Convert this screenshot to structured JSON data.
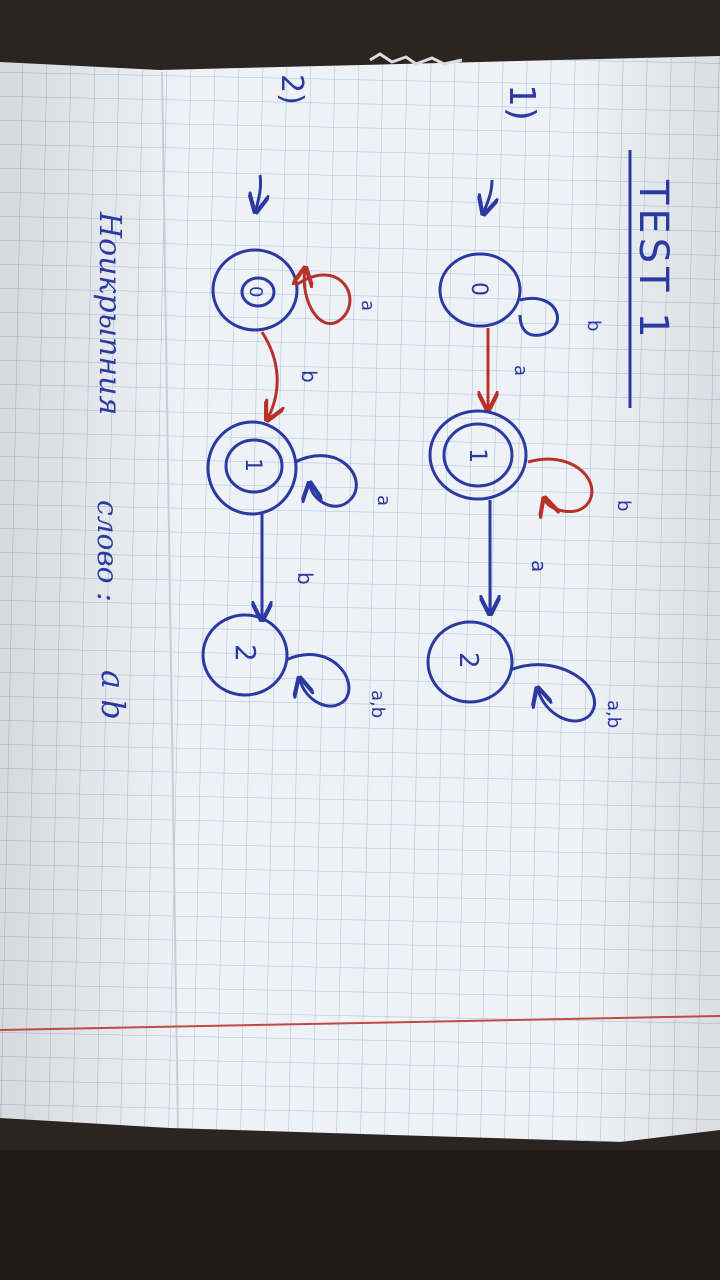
{
  "photo": {
    "title": "TEST 1",
    "section_1_marker": "1)",
    "section_2_marker": "2)",
    "caption_word_1": "Ноикрыпния",
    "caption_word_2": "слово :",
    "caption_word_3": "a b"
  },
  "automaton_1": {
    "states": [
      {
        "id": "s1-q0",
        "label": "0",
        "accepting": false
      },
      {
        "id": "s1-q1",
        "label": "1",
        "accepting": true
      },
      {
        "id": "s1-q2",
        "label": "2",
        "accepting": false
      }
    ],
    "edge_labels": {
      "q0_q1": "a",
      "q0_loop": "b",
      "q1_loop": "b",
      "q1_q2": "a",
      "q2_loop": "a,b"
    }
  },
  "automaton_2": {
    "states": [
      {
        "id": "s2-q0",
        "label": "0",
        "accepting": false
      },
      {
        "id": "s2-q1",
        "label": "1",
        "accepting": true
      },
      {
        "id": "s2-q2",
        "label": "2",
        "accepting": false
      }
    ],
    "edge_labels": {
      "q0_loop": "a",
      "q0_q1": "b",
      "q1_loop": "a",
      "q1_q2": "b",
      "q2_loop": "a,b"
    }
  },
  "colors": {
    "ink_blue": "#2a3aa0",
    "ink_red": "#b8322a",
    "grid_blue": "#9db7d8",
    "margin_red": "#c04a44",
    "table": "#2b2522",
    "paper": "#eef1f6"
  }
}
